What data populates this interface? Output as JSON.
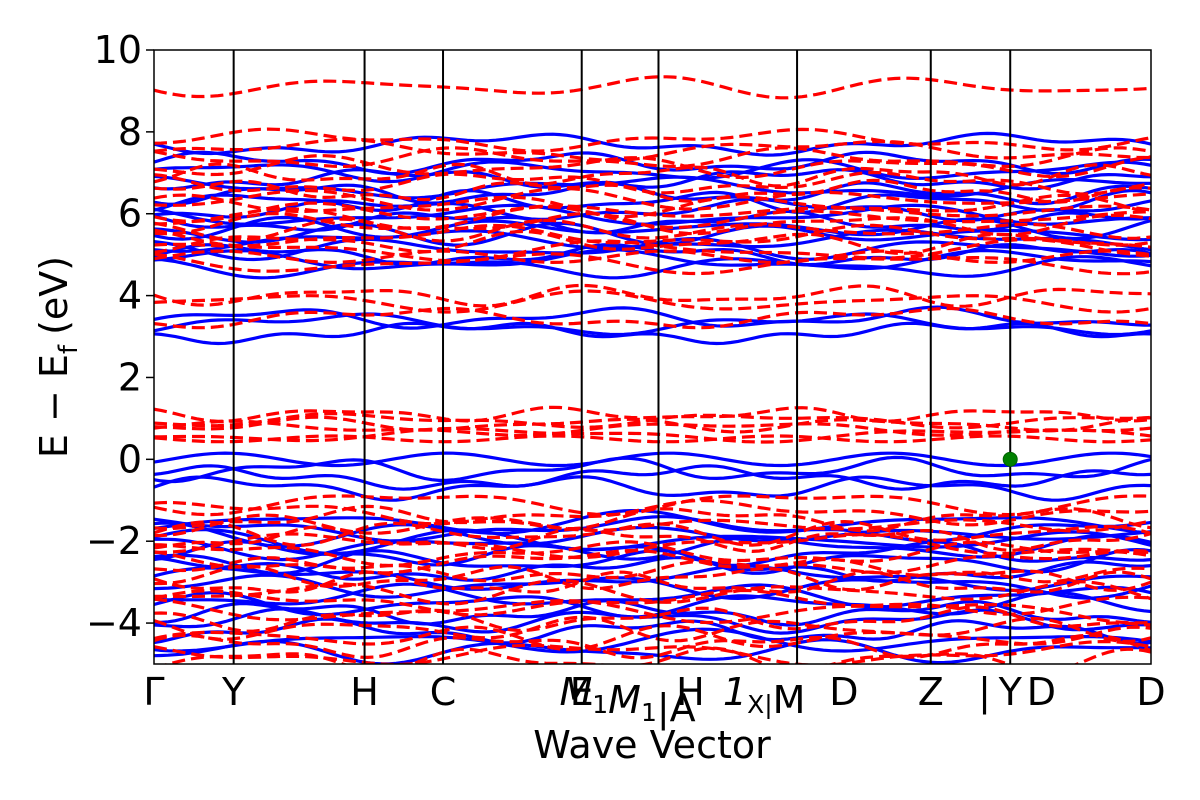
{
  "chart_data": {
    "type": "line",
    "title": "",
    "xlabel": "Wave Vector",
    "ylabel": "E − E",
    "ylabel_sub": "f",
    "ylabel_unit": "(eV)",
    "ylim": [
      -5,
      10
    ],
    "yticks": [
      -4,
      -2,
      0,
      2,
      4,
      6,
      8,
      10
    ],
    "ytick_labels": [
      "−4",
      "−2",
      "0",
      "2",
      "4",
      "6",
      "8",
      "10"
    ],
    "xlim": [
      0,
      1
    ],
    "grid": false,
    "kpoints": [
      {
        "x": 0.0,
        "label": "Γ",
        "sub": ""
      },
      {
        "x": 0.0799,
        "label": "Y",
        "sub": ""
      },
      {
        "x": 0.2112,
        "label": "H",
        "sub": ""
      },
      {
        "x": 0.2899,
        "label": "C",
        "sub": ""
      },
      {
        "x": 0.429,
        "label": "E",
        "sub": ""
      },
      {
        "x": 0.491,
        "label": "M",
        "sub": "1",
        "italic": true
      },
      {
        "x": 0.506,
        "label": "|A",
        "sub": ""
      },
      {
        "x": 0.645,
        "label": "H",
        "sub": "1",
        "italic": true
      },
      {
        "x": 0.648,
        "label": "X|M",
        "sub": ""
      },
      {
        "x": 0.7791,
        "label": "D",
        "sub": ""
      },
      {
        "x": 0.8588,
        "label": "Z|Y",
        "sub": ""
      },
      {
        "x": 1.0,
        "label": "D",
        "sub": ""
      }
    ],
    "tick_texts": [
      "Γ",
      "Y",
      "H",
      "C",
      "E",
      "M",
      "1",
      "M",
      "1",
      "|A",
      "H",
      "1",
      "X|",
      "M",
      "D",
      "Z",
      "|",
      "Y",
      "D"
    ],
    "vlines_x": [
      0.0799,
      0.2112,
      0.2899,
      0.429,
      0.506,
      0.645,
      0.7791,
      0.8588
    ],
    "series": [
      {
        "name": "",
        "style": "solid",
        "color": "#0000ff",
        "description_levels_eV": {
          "conduction": [
            3.3,
            3.45,
            3.1,
            4.7,
            4.85,
            5.0,
            5.15,
            5.35,
            5.5,
            5.65,
            5.8,
            5.95,
            6.1,
            6.3,
            6.5,
            6.65,
            6.85,
            7.05,
            7.25,
            7.7
          ],
          "valence": [
            0.0,
            -0.25,
            -0.45,
            -0.7,
            -1.55,
            -1.7,
            -1.85,
            -2.0,
            -2.15,
            -2.3,
            -2.5,
            -2.7,
            -2.9,
            -3.1,
            -3.35,
            -3.55,
            -3.75,
            -3.95,
            -4.2,
            -4.45,
            -4.7
          ]
        }
      },
      {
        "name": "",
        "style": "dashed",
        "color": "#ff0000",
        "description_levels_eV": {
          "conduction": [
            3.85,
            4.0,
            3.45,
            4.8,
            4.95,
            5.1,
            5.3,
            5.45,
            5.6,
            5.75,
            5.9,
            6.05,
            6.2,
            6.35,
            6.55,
            6.75,
            6.95,
            7.15,
            7.35,
            7.55,
            7.8,
            9.1
          ],
          "valence_gap_states": [
            1.1,
            0.95,
            0.85,
            0.75,
            0.6,
            0.5
          ],
          "valence": [
            -1.05,
            -1.3,
            -1.45,
            -1.6,
            -1.8,
            -1.95,
            -2.1,
            -2.3,
            -2.5,
            -2.7,
            -2.9,
            -3.05,
            -3.25,
            -3.5,
            -3.7,
            -3.9,
            -4.15,
            -4.35,
            -4.55,
            -4.75,
            -4.9
          ]
        }
      }
    ],
    "markers": [
      {
        "x": 0.8588,
        "y": 0.0,
        "color": "#008000"
      }
    ]
  }
}
